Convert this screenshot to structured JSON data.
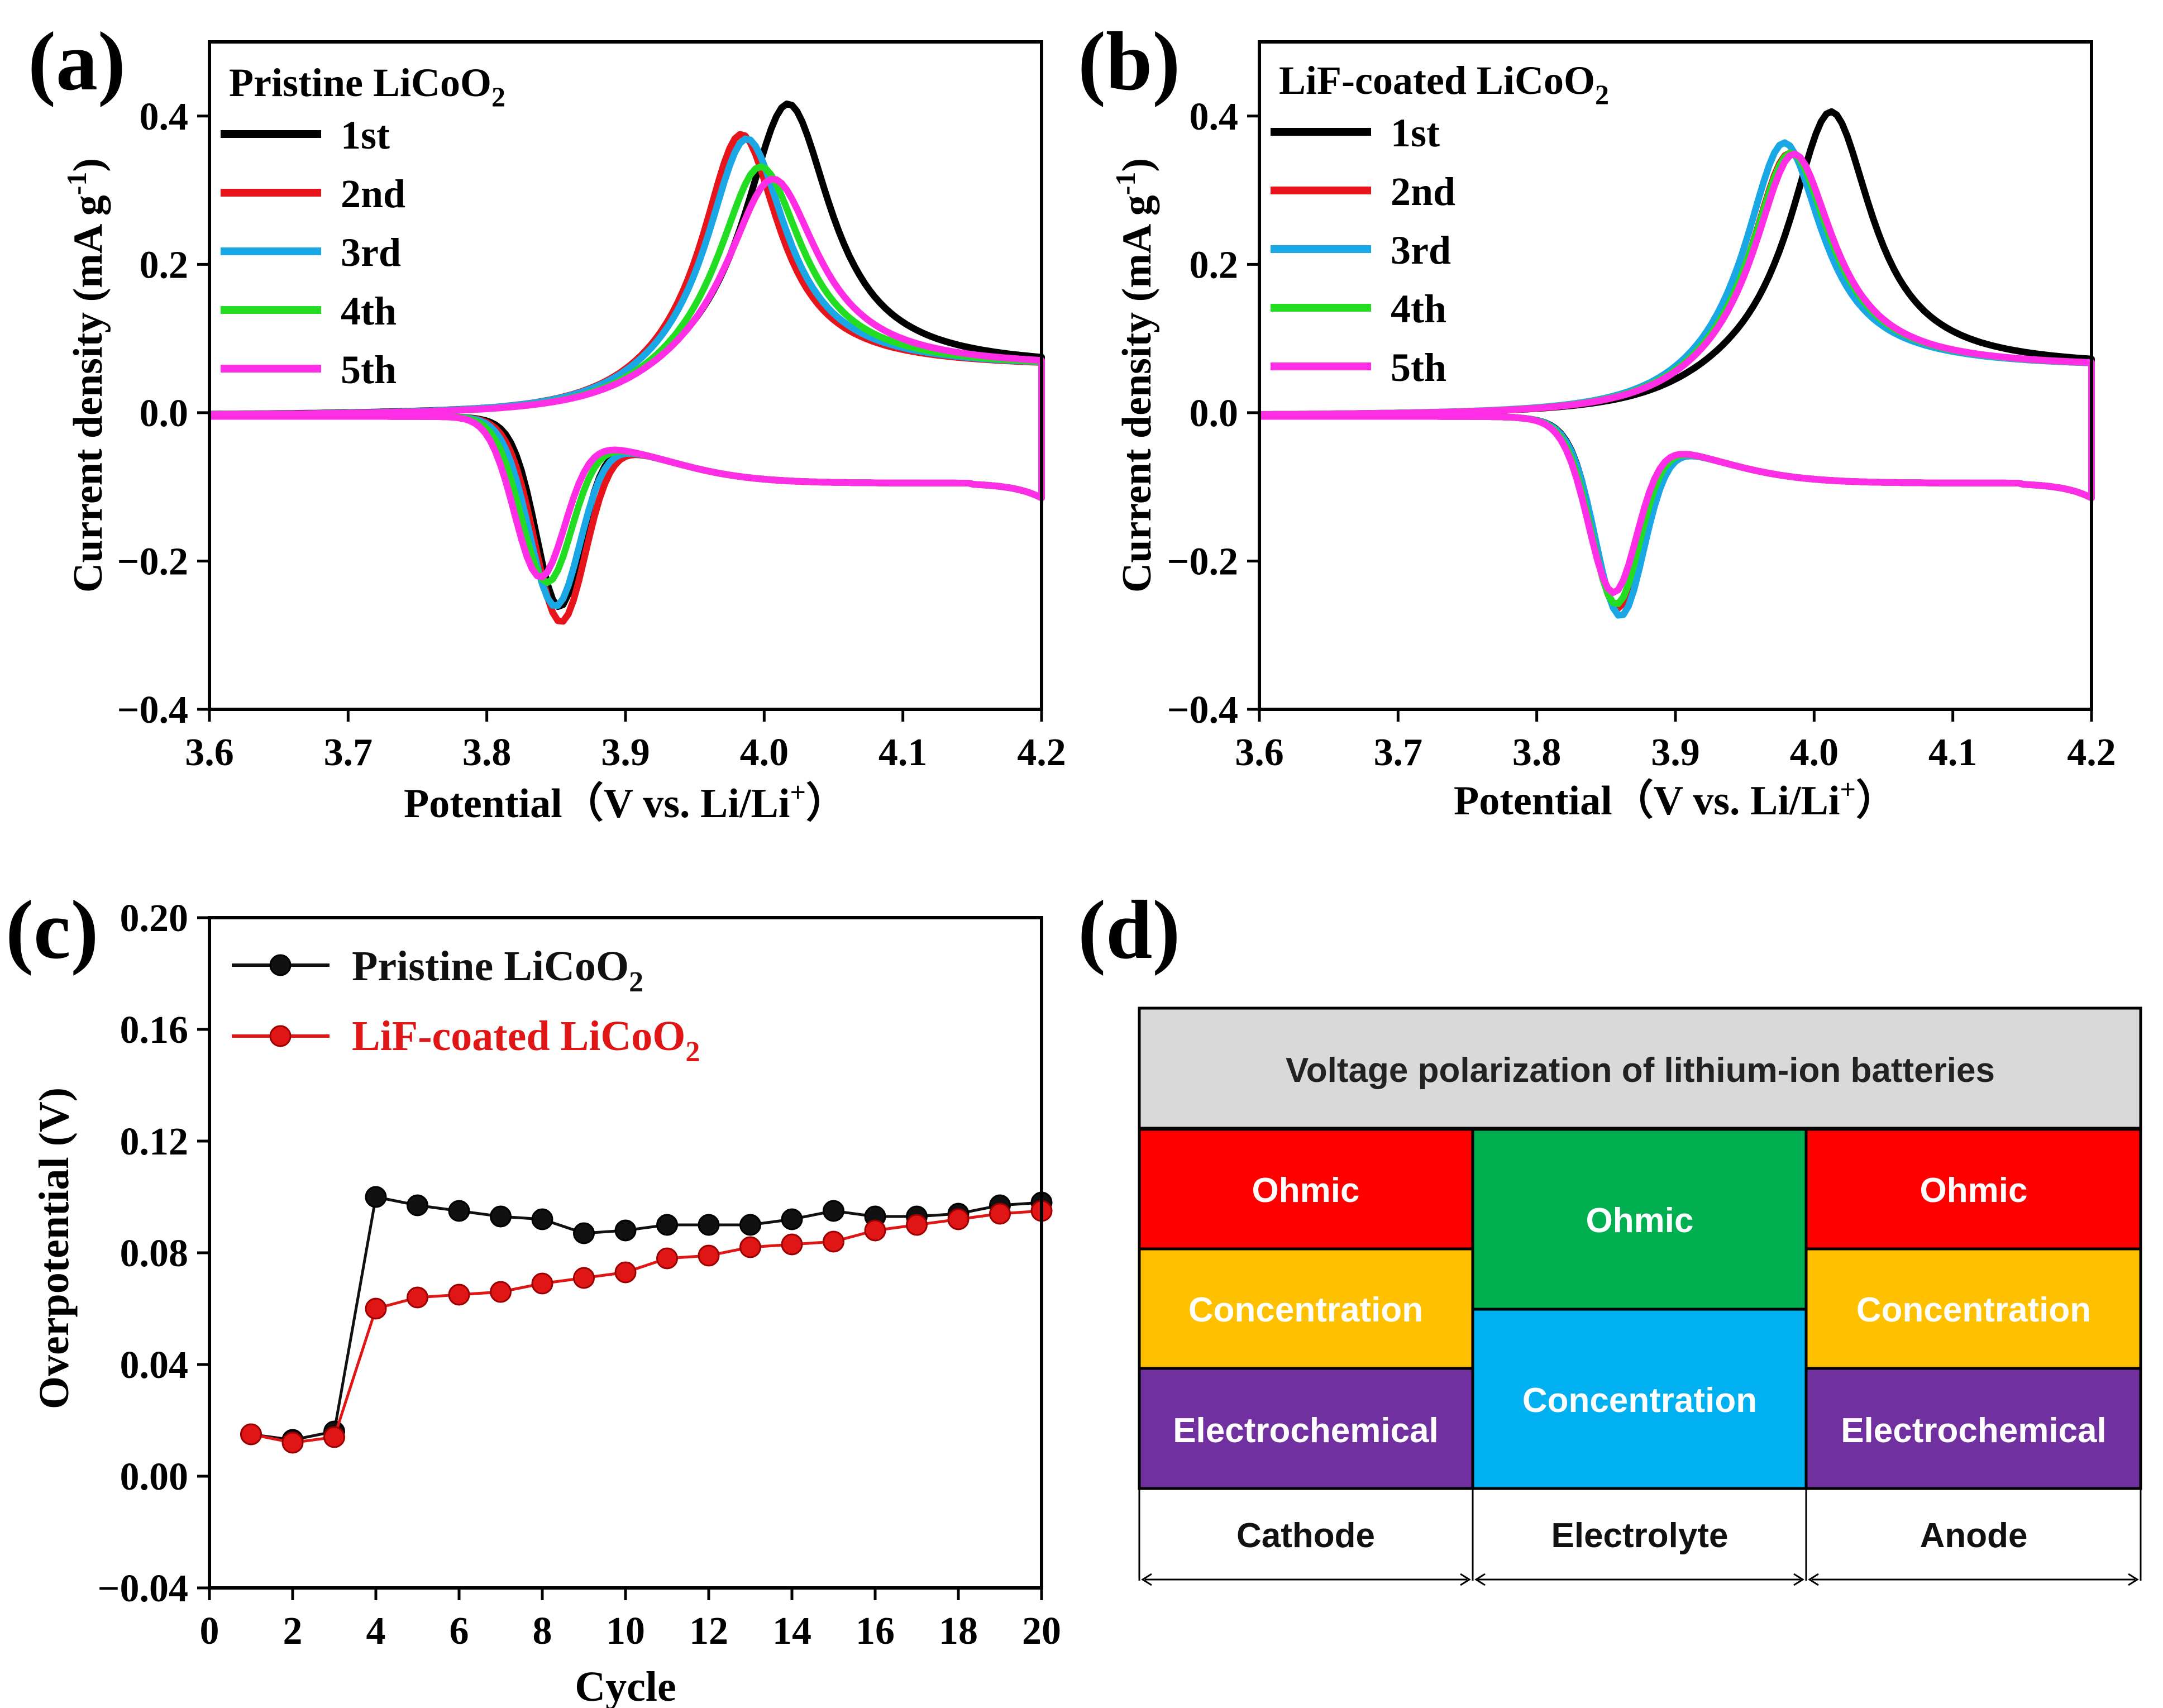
{
  "figure": {
    "colors": {
      "black": "#000000",
      "red": "#e8141b",
      "blue": "#1aa7e6",
      "green": "#22dd22",
      "magenta": "#ff2ee6",
      "c_black_marker": "#111111",
      "c_red_marker": "#e01515",
      "c_red_text": "#e01515",
      "table_header": "#d9d9d9",
      "ohmic": "#ff0000",
      "concentration": "#ffc000",
      "electrochemical": "#7030a0",
      "electrolyte_ohmic": "#00b050",
      "electrolyte_concentration": "#00b0f0"
    }
  },
  "chart_data": [
    {
      "id": "a",
      "panel_label": "(a)",
      "type": "line",
      "title": "Pristine LiCoO",
      "title_sub": "2",
      "xlabel": "Potential（V vs. Li/Li",
      "xlabel_sup": "+",
      "xlabel_end": "）",
      "ylabel": "Current density (mA g",
      "ylabel_sup": "-1",
      "ylabel_end": ")",
      "xlim": [
        3.6,
        4.2
      ],
      "ylim": [
        -0.4,
        0.5
      ],
      "xticks": [
        3.6,
        3.7,
        3.8,
        3.9,
        4.0,
        4.1,
        4.2
      ],
      "xtick_labels": [
        "3.6",
        "3.7",
        "3.8",
        "3.9",
        "4.0",
        "4.1",
        "4.2"
      ],
      "yticks": [
        -0.4,
        -0.2,
        0.0,
        0.2,
        0.4
      ],
      "ytick_labels": [
        "−0.4",
        "−0.2",
        "0.0",
        "0.2",
        "0.4"
      ],
      "legend_location": "top-left",
      "series": [
        {
          "name": "1st",
          "color": "#000000",
          "ox_peak": 4.017,
          "ox_height": 0.36,
          "ox_width": 0.038,
          "red_peak": 3.852,
          "red_depth": 0.225,
          "red_width": 0.016
        },
        {
          "name": "2nd",
          "color": "#e8141b",
          "ox_peak": 3.983,
          "ox_height": 0.325,
          "ox_width": 0.034,
          "red_peak": 3.853,
          "red_depth": 0.245,
          "red_width": 0.018
        },
        {
          "name": "3rd",
          "color": "#1aa7e6",
          "ox_peak": 3.987,
          "ox_height": 0.318,
          "ox_width": 0.035,
          "red_peak": 3.849,
          "red_depth": 0.225,
          "red_width": 0.018
        },
        {
          "name": "4th",
          "color": "#22dd22",
          "ox_peak": 3.997,
          "ox_height": 0.278,
          "ox_width": 0.037,
          "red_peak": 3.843,
          "red_depth": 0.195,
          "red_width": 0.018
        },
        {
          "name": "5th",
          "color": "#ff2ee6",
          "ox_peak": 4.006,
          "ox_height": 0.26,
          "ox_width": 0.04,
          "red_peak": 3.838,
          "red_depth": 0.19,
          "red_width": 0.018
        }
      ]
    },
    {
      "id": "b",
      "panel_label": "(b)",
      "type": "line",
      "title": "LiF-coated LiCoO",
      "title_sub": "2",
      "xlabel": "Potential（V vs. Li/Li",
      "xlabel_sup": "+",
      "xlabel_end": "）",
      "ylabel": "Current density (mA g",
      "ylabel_sup": "-1",
      "ylabel_end": ")",
      "xlim": [
        3.6,
        4.2
      ],
      "ylim": [
        -0.4,
        0.5
      ],
      "xticks": [
        3.6,
        3.7,
        3.8,
        3.9,
        4.0,
        4.1,
        4.2
      ],
      "xtick_labels": [
        "3.6",
        "3.7",
        "3.8",
        "3.9",
        "4.0",
        "4.1",
        "4.2"
      ],
      "yticks": [
        -0.4,
        -0.2,
        0.0,
        0.2,
        0.4
      ],
      "ytick_labels": [
        "−0.4",
        "−0.2",
        "0.0",
        "0.2",
        "0.4"
      ],
      "legend_location": "top-left",
      "series": [
        {
          "name": "1st",
          "color": "#000000",
          "ox_peak": 4.012,
          "ox_height": 0.35,
          "ox_width": 0.036,
          "red_peak": 3.858,
          "red_depth": 0.225,
          "red_width": 0.016
        },
        {
          "name": "2nd",
          "color": "#e8141b",
          "ox_peak": 3.982,
          "ox_height": 0.3,
          "ox_width": 0.034,
          "red_peak": 3.858,
          "red_depth": 0.225,
          "red_width": 0.017
        },
        {
          "name": "3rd",
          "color": "#1aa7e6",
          "ox_peak": 3.978,
          "ox_height": 0.315,
          "ox_width": 0.034,
          "red_peak": 3.86,
          "red_depth": 0.235,
          "red_width": 0.017
        },
        {
          "name": "4th",
          "color": "#22dd22",
          "ox_peak": 3.983,
          "ox_height": 0.3,
          "ox_width": 0.035,
          "red_peak": 3.857,
          "red_depth": 0.22,
          "red_width": 0.017
        },
        {
          "name": "5th",
          "color": "#ff2ee6",
          "ox_peak": 3.985,
          "ox_height": 0.298,
          "ox_width": 0.035,
          "red_peak": 3.855,
          "red_depth": 0.205,
          "red_width": 0.017
        }
      ]
    },
    {
      "id": "c",
      "panel_label": "(c)",
      "type": "line",
      "xlabel": "Cycle",
      "ylabel": "Overpotential (V)",
      "xlim": [
        0,
        20
      ],
      "ylim": [
        -0.04,
        0.2
      ],
      "xticks": [
        0,
        2,
        4,
        6,
        8,
        10,
        12,
        14,
        16,
        18,
        20
      ],
      "xtick_labels": [
        "0",
        "2",
        "4",
        "6",
        "8",
        "10",
        "12",
        "14",
        "16",
        "18",
        "20"
      ],
      "yticks": [
        -0.04,
        0.0,
        0.04,
        0.08,
        0.12,
        0.16,
        0.2
      ],
      "ytick_labels": [
        "−0.04",
        "0.00",
        "0.04",
        "0.08",
        "0.12",
        "0.16",
        "0.20"
      ],
      "legend_location": "top-left",
      "series": [
        {
          "name": "Pristine LiCoO",
          "name_sub": "2",
          "color": "#111111",
          "x": [
            1,
            2,
            3,
            4,
            5,
            6,
            7,
            8,
            9,
            10,
            11,
            12,
            13,
            14,
            15,
            16,
            17,
            18,
            19,
            20
          ],
          "values": [
            0.015,
            0.013,
            0.016,
            0.1,
            0.097,
            0.095,
            0.093,
            0.092,
            0.087,
            0.088,
            0.09,
            0.09,
            0.09,
            0.092,
            0.095,
            0.093,
            0.093,
            0.094,
            0.097,
            0.098
          ]
        },
        {
          "name": "LiF-coated LiCoO",
          "name_sub": "2",
          "color": "#e01515",
          "x": [
            1,
            2,
            3,
            4,
            5,
            6,
            7,
            8,
            9,
            10,
            11,
            12,
            13,
            14,
            15,
            16,
            17,
            18,
            19,
            20
          ],
          "values": [
            0.015,
            0.012,
            0.014,
            0.06,
            0.064,
            0.065,
            0.066,
            0.069,
            0.071,
            0.073,
            0.078,
            0.079,
            0.082,
            0.083,
            0.084,
            0.088,
            0.09,
            0.092,
            0.094,
            0.095
          ]
        }
      ]
    }
  ],
  "panel_d": {
    "panel_label": "(d)",
    "title": "Voltage polarization of lithium-ion batteries",
    "columns": [
      {
        "name": "Cathode",
        "blocks": [
          "Ohmic",
          "Concentration",
          "Electrochemical"
        ]
      },
      {
        "name": "Electrolyte",
        "blocks": [
          "Ohmic",
          "Concentration"
        ]
      },
      {
        "name": "Anode",
        "blocks": [
          "Ohmic",
          "Concentration",
          "Electrochemical"
        ]
      }
    ]
  }
}
